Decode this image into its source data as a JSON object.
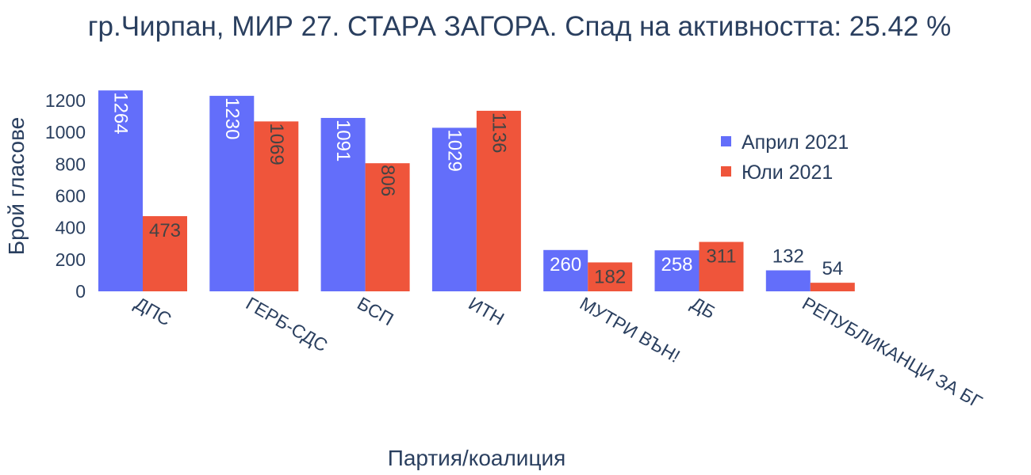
{
  "title": "гр.Чирпан, МИР 27. СТАРА ЗАГОРА. Спад на активността: 25.42 %",
  "chart_data": {
    "type": "bar",
    "title": "гр.Чирпан, МИР 27. СТАРА ЗАГОРА. Спад на активността: 25.42 %",
    "xlabel": "Партия/коалиция",
    "ylabel": "Брой гласове",
    "categories": [
      "ДПС",
      "ГЕРБ-СДС",
      "БСП",
      "ИТН",
      "МУТРИ ВЪН!",
      "ДБ",
      "РЕПУБЛИКАНЦИ ЗА БГ"
    ],
    "series": [
      {
        "name": "Април 2021",
        "color": "#636efa",
        "values": [
          1264,
          1230,
          1091,
          1029,
          260,
          258,
          132
        ]
      },
      {
        "name": "Юли 2021",
        "color": "#ef553b",
        "values": [
          473,
          1069,
          806,
          1136,
          182,
          311,
          54
        ]
      }
    ],
    "ylim": [
      0,
      1300
    ],
    "yticks": [
      0,
      200,
      400,
      600,
      800,
      1000,
      1200
    ],
    "grid": false,
    "legend_position": "top-right",
    "barmode": "group"
  }
}
